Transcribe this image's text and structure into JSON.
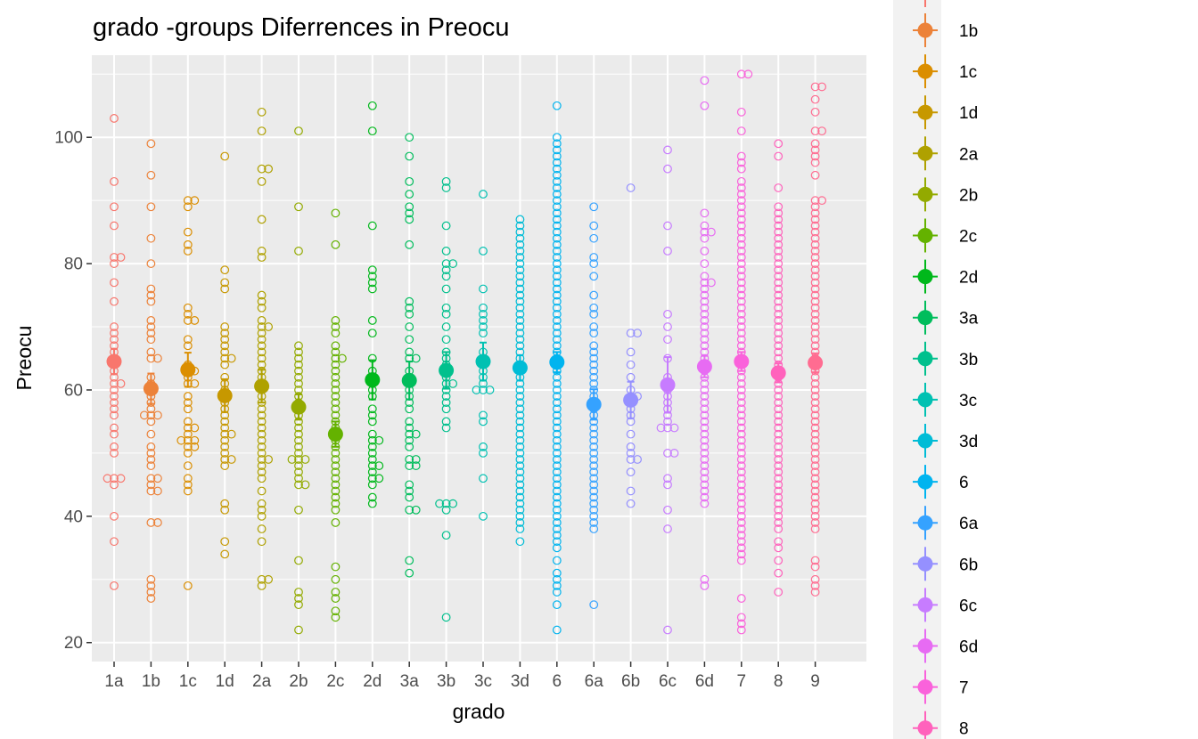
{
  "chart_data": {
    "type": "scatter",
    "title": "grado -groups Diferrences in  Preocu",
    "xlabel": "grado",
    "ylabel": "Preocu",
    "categories": [
      "1a",
      "1b",
      "1c",
      "1d",
      "2a",
      "2b",
      "2c",
      "2d",
      "3a",
      "3b",
      "3c",
      "3d",
      "6",
      "6a",
      "6b",
      "6c",
      "6d",
      "7",
      "8",
      "9"
    ],
    "ylim": [
      17,
      113
    ],
    "y_ticks": [
      20,
      40,
      60,
      80,
      100
    ],
    "grid": true,
    "legend_position": "right",
    "legend_entries": [
      "1b",
      "1c",
      "1d",
      "2a",
      "2b",
      "2c",
      "2d",
      "3a",
      "3b",
      "3c",
      "3d",
      "6",
      "6a",
      "6b",
      "6c",
      "6d",
      "7",
      "8"
    ],
    "colors": {
      "1a": "#F8766D",
      "1b": "#EC8239",
      "1c": "#DB8E00",
      "1d": "#C79800",
      "2a": "#AFA100",
      "2b": "#93AA00",
      "2c": "#64B200",
      "2d": "#00B81B",
      "3a": "#00BD5C",
      "3b": "#00C08D",
      "3c": "#00C1B2",
      "3d": "#00BCD6",
      "6": "#00B4EF",
      "6a": "#35A2FF",
      "6b": "#9590FF",
      "6c": "#C77CFF",
      "6d": "#E76BF3",
      "7": "#FA62DB",
      "8": "#FF62BC",
      "9": "#FF6C91"
    },
    "series": [
      {
        "category": "1a",
        "mean": 64.5,
        "ci": [
          62.5,
          66.5
        ],
        "points": [
          103,
          93,
          89,
          86,
          81,
          81,
          80,
          77,
          74,
          70,
          69,
          68,
          67,
          66,
          65,
          64,
          63,
          62,
          61,
          61,
          60,
          59,
          58,
          57,
          56,
          54,
          53,
          51,
          50,
          46,
          46,
          46,
          45,
          40,
          36,
          29
        ]
      },
      {
        "category": "1b",
        "mean": 60.2,
        "ci": [
          57.8,
          62.6
        ],
        "points": [
          99,
          94,
          89,
          84,
          80,
          76,
          75,
          74,
          71,
          70,
          69,
          68,
          66,
          65,
          65,
          62,
          61,
          60,
          59,
          58,
          57,
          56,
          56,
          56,
          55,
          53,
          51,
          50,
          49,
          48,
          46,
          46,
          45,
          44,
          44,
          39,
          39,
          30,
          29,
          28,
          27
        ]
      },
      {
        "category": "1c",
        "mean": 63.2,
        "ci": [
          60.5,
          65.9
        ],
        "points": [
          90,
          90,
          89,
          85,
          83,
          82,
          73,
          72,
          71,
          71,
          68,
          67,
          64,
          63,
          63,
          62,
          61,
          61,
          59,
          58,
          57,
          55,
          54,
          54,
          53,
          52,
          52,
          52,
          51,
          51,
          50,
          48,
          46,
          45,
          44,
          29
        ]
      },
      {
        "category": "1d",
        "mean": 59.1,
        "ci": [
          56.5,
          61.7
        ],
        "points": [
          97,
          79,
          77,
          76,
          70,
          69,
          68,
          67,
          66,
          65,
          65,
          64,
          62,
          61,
          60,
          59,
          58,
          57,
          56,
          55,
          54,
          53,
          53,
          52,
          51,
          50,
          49,
          49,
          48,
          42,
          41,
          36,
          34
        ]
      },
      {
        "category": "2a",
        "mean": 60.6,
        "ci": [
          58,
          63.2
        ],
        "points": [
          104,
          101,
          95,
          95,
          93,
          87,
          82,
          81,
          75,
          74,
          73,
          71,
          70,
          70,
          69,
          68,
          67,
          66,
          65,
          64,
          63,
          62,
          61,
          60,
          59,
          58,
          57,
          56,
          55,
          54,
          53,
          52,
          51,
          50,
          49,
          49,
          48,
          47,
          46,
          44,
          42,
          41,
          40,
          38,
          36,
          30,
          30,
          29
        ]
      },
      {
        "category": "2b",
        "mean": 57.3,
        "ci": [
          55.3,
          59.3
        ],
        "points": [
          101,
          89,
          82,
          67,
          66,
          65,
          64,
          63,
          62,
          61,
          60,
          59,
          58,
          57,
          56,
          55,
          54,
          53,
          52,
          51,
          50,
          49,
          49,
          49,
          48,
          47,
          46,
          45,
          45,
          41,
          33,
          28,
          27,
          26,
          22
        ]
      },
      {
        "category": "2c",
        "mean": 53,
        "ci": [
          51,
          55
        ],
        "points": [
          88,
          83,
          71,
          70,
          69,
          67,
          66,
          65,
          65,
          64,
          63,
          62,
          61,
          60,
          59,
          58,
          57,
          56,
          55,
          54,
          53,
          52,
          51,
          50,
          49,
          48,
          47,
          46,
          45,
          44,
          43,
          42,
          41,
          39,
          32,
          30,
          28,
          27,
          25,
          24
        ]
      },
      {
        "category": "2d",
        "mean": 61.6,
        "ci": [
          58.5,
          64.7
        ],
        "points": [
          105,
          101,
          86,
          79,
          78,
          77,
          76,
          71,
          69,
          65,
          63,
          62,
          61,
          60,
          59,
          57,
          56,
          55,
          53,
          52,
          52,
          51,
          50,
          49,
          48,
          48,
          47,
          46,
          46,
          45,
          43,
          42
        ]
      },
      {
        "category": "3a",
        "mean": 61.5,
        "ci": [
          58.5,
          64.5
        ],
        "points": [
          100,
          97,
          93,
          91,
          89,
          88,
          87,
          83,
          74,
          73,
          72,
          70,
          68,
          66,
          65,
          65,
          63,
          61,
          60,
          59,
          58,
          57,
          55,
          54,
          53,
          53,
          52,
          51,
          49,
          49,
          48,
          48,
          45,
          44,
          43,
          41,
          41,
          33,
          31
        ]
      },
      {
        "category": "3b",
        "mean": 63.1,
        "ci": [
          60.2,
          66
        ],
        "points": [
          93,
          92,
          86,
          82,
          80,
          80,
          79,
          78,
          76,
          73,
          72,
          70,
          68,
          66,
          65,
          64,
          63,
          62,
          61,
          61,
          60,
          59,
          58,
          57,
          55,
          54,
          42,
          42,
          42,
          41,
          37,
          24
        ]
      },
      {
        "category": "3c",
        "mean": 64.5,
        "ci": [
          61.5,
          67.5
        ],
        "points": [
          91,
          82,
          76,
          73,
          72,
          71,
          70,
          69,
          66,
          65,
          64,
          63,
          62,
          61,
          60,
          60,
          60,
          56,
          55,
          51,
          50,
          46,
          40
        ]
      },
      {
        "category": "3d",
        "mean": 63.5,
        "ci": [
          61.5,
          65.5
        ],
        "points": [
          87,
          86,
          85,
          84,
          83,
          82,
          81,
          80,
          79,
          78,
          77,
          76,
          75,
          74,
          73,
          72,
          71,
          70,
          69,
          68,
          67,
          66,
          65,
          64,
          63,
          62,
          61,
          60,
          59,
          58,
          57,
          56,
          55,
          54,
          53,
          52,
          51,
          50,
          49,
          48,
          47,
          46,
          45,
          44,
          43,
          42,
          41,
          40,
          39,
          38,
          36
        ]
      },
      {
        "category": "6",
        "mean": 64.4,
        "ci": [
          62.8,
          66
        ],
        "points": [
          105,
          100,
          99,
          98,
          97,
          96,
          95,
          94,
          93,
          92,
          91,
          90,
          89,
          88,
          87,
          86,
          85,
          84,
          83,
          82,
          81,
          80,
          79,
          78,
          77,
          76,
          75,
          74,
          73,
          72,
          71,
          70,
          69,
          68,
          67,
          66,
          65,
          64,
          63,
          62,
          61,
          60,
          59,
          58,
          57,
          56,
          55,
          54,
          53,
          52,
          51,
          50,
          49,
          48,
          47,
          46,
          45,
          44,
          43,
          42,
          41,
          40,
          39,
          38,
          37,
          36,
          35,
          33,
          31,
          30,
          29,
          28,
          26,
          22
        ]
      },
      {
        "category": "6a",
        "mean": 57.7,
        "ci": [
          55.3,
          60.1
        ],
        "points": [
          89,
          86,
          84,
          81,
          80,
          78,
          75,
          73,
          72,
          70,
          69,
          67,
          66,
          65,
          64,
          63,
          62,
          61,
          60,
          59,
          58,
          57,
          56,
          55,
          54,
          53,
          52,
          51,
          50,
          49,
          48,
          47,
          46,
          45,
          44,
          43,
          42,
          41,
          40,
          39,
          38,
          26
        ]
      },
      {
        "category": "6b",
        "mean": 58.4,
        "ci": [
          55.5,
          61.3
        ],
        "points": [
          92,
          69,
          69,
          66,
          64,
          62,
          60,
          59,
          59,
          58,
          57,
          56,
          55,
          53,
          51,
          50,
          49,
          49,
          47,
          44,
          42
        ]
      },
      {
        "category": "6c",
        "mean": 60.8,
        "ci": [
          56.4,
          65.2
        ],
        "points": [
          98,
          95,
          86,
          82,
          72,
          70,
          68,
          65,
          62,
          60,
          59,
          58,
          57,
          56,
          55,
          54,
          54,
          54,
          50,
          50,
          46,
          45,
          41,
          38,
          22
        ]
      },
      {
        "category": "6d",
        "mean": 63.7,
        "ci": [
          62,
          65.4
        ],
        "points": [
          109,
          105,
          88,
          86,
          85,
          85,
          84,
          82,
          80,
          78,
          77,
          77,
          76,
          75,
          74,
          73,
          72,
          71,
          70,
          69,
          68,
          67,
          66,
          65,
          64,
          63,
          62,
          61,
          60,
          59,
          58,
          57,
          56,
          55,
          54,
          53,
          52,
          51,
          50,
          49,
          48,
          47,
          46,
          45,
          44,
          43,
          42,
          30,
          29
        ]
      },
      {
        "category": "7",
        "mean": 64.5,
        "ci": [
          63,
          66
        ],
        "points": [
          110,
          110,
          104,
          101,
          97,
          96,
          95,
          93,
          92,
          91,
          90,
          89,
          88,
          87,
          86,
          85,
          84,
          83,
          82,
          81,
          80,
          79,
          78,
          77,
          76,
          75,
          74,
          73,
          72,
          71,
          70,
          69,
          68,
          67,
          66,
          65,
          64,
          63,
          62,
          61,
          60,
          59,
          58,
          57,
          56,
          55,
          54,
          53,
          52,
          51,
          50,
          49,
          48,
          47,
          46,
          45,
          44,
          43,
          42,
          41,
          40,
          39,
          38,
          37,
          36,
          35,
          34,
          33,
          27,
          24,
          23,
          22
        ]
      },
      {
        "category": "8",
        "mean": 62.7,
        "ci": [
          61.2,
          64.2
        ],
        "points": [
          99,
          97,
          92,
          89,
          88,
          87,
          86,
          85,
          84,
          83,
          82,
          81,
          80,
          79,
          78,
          77,
          76,
          75,
          74,
          73,
          72,
          71,
          70,
          69,
          68,
          67,
          66,
          65,
          64,
          63,
          62,
          61,
          60,
          59,
          58,
          57,
          56,
          55,
          54,
          53,
          52,
          51,
          50,
          49,
          48,
          47,
          46,
          45,
          44,
          43,
          42,
          41,
          40,
          39,
          38,
          36,
          35,
          33,
          31,
          28
        ]
      },
      {
        "category": "9",
        "mean": 64.3,
        "ci": [
          62.8,
          65.8
        ],
        "points": [
          108,
          108,
          106,
          104,
          101,
          101,
          99,
          98,
          97,
          96,
          94,
          90,
          90,
          89,
          88,
          87,
          86,
          85,
          84,
          83,
          82,
          81,
          80,
          79,
          78,
          77,
          76,
          75,
          74,
          73,
          72,
          71,
          70,
          69,
          68,
          67,
          66,
          65,
          64,
          63,
          62,
          61,
          60,
          59,
          58,
          57,
          56,
          55,
          54,
          53,
          52,
          51,
          50,
          49,
          48,
          47,
          46,
          45,
          44,
          43,
          42,
          41,
          40,
          39,
          38,
          33,
          32,
          30,
          29,
          28
        ]
      }
    ]
  }
}
